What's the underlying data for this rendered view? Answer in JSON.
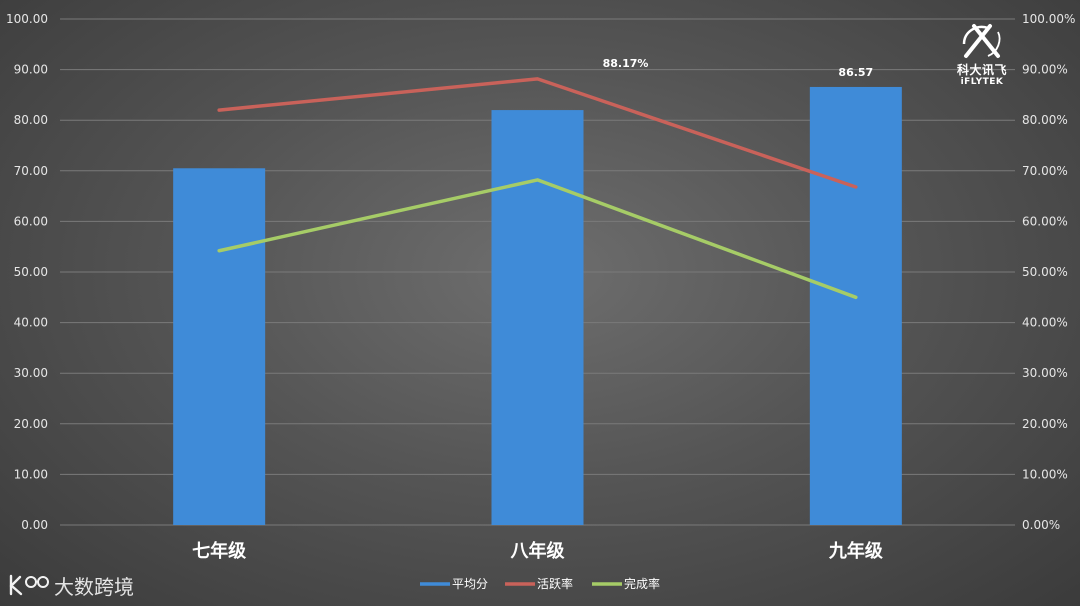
{
  "colors": {
    "bar": "#3f8bd8",
    "active_line": "#c9625a",
    "complete_line": "#a6cc67",
    "grid": "#7a7a7a",
    "text": "#e6e6e6"
  },
  "logo": {
    "line1": "科大讯飞",
    "line2": "iFLYTEK",
    "icon": "iflytek-logo-icon"
  },
  "watermark": {
    "text": "大数跨境",
    "icon": "watermark-logo-icon"
  },
  "chart_data": {
    "type": "bar",
    "categories": [
      "七年级",
      "八年级",
      "九年级"
    ],
    "series": [
      {
        "name": "平均分",
        "type": "bar",
        "axis": "left",
        "values": [
          70.5,
          82.0,
          86.57
        ]
      },
      {
        "name": "活跃率",
        "type": "line",
        "axis": "right",
        "values": [
          82.0,
          88.17,
          66.8
        ]
      },
      {
        "name": "完成率",
        "type": "line",
        "axis": "right",
        "values": [
          54.2,
          68.2,
          45.0
        ]
      }
    ],
    "y_left": {
      "range": [
        0,
        100
      ],
      "ticks": [
        "0.00",
        "10.00",
        "20.00",
        "30.00",
        "40.00",
        "50.00",
        "60.00",
        "70.00",
        "80.00",
        "90.00",
        "100.00"
      ]
    },
    "y_right": {
      "range": [
        0,
        100
      ],
      "ticks": [
        "0.00%",
        "10.00%",
        "20.00%",
        "30.00%",
        "40.00%",
        "50.00%",
        "60.00%",
        "70.00%",
        "80.00%",
        "90.00%",
        "100.00%"
      ]
    },
    "data_labels": [
      {
        "series": "活跃率",
        "index": 1,
        "text": "88.17%"
      },
      {
        "series": "平均分",
        "index": 2,
        "text": "86.57"
      }
    ],
    "grid": true,
    "legend_position": "bottom",
    "legend": [
      "平均分",
      "活跃率",
      "完成率"
    ]
  }
}
